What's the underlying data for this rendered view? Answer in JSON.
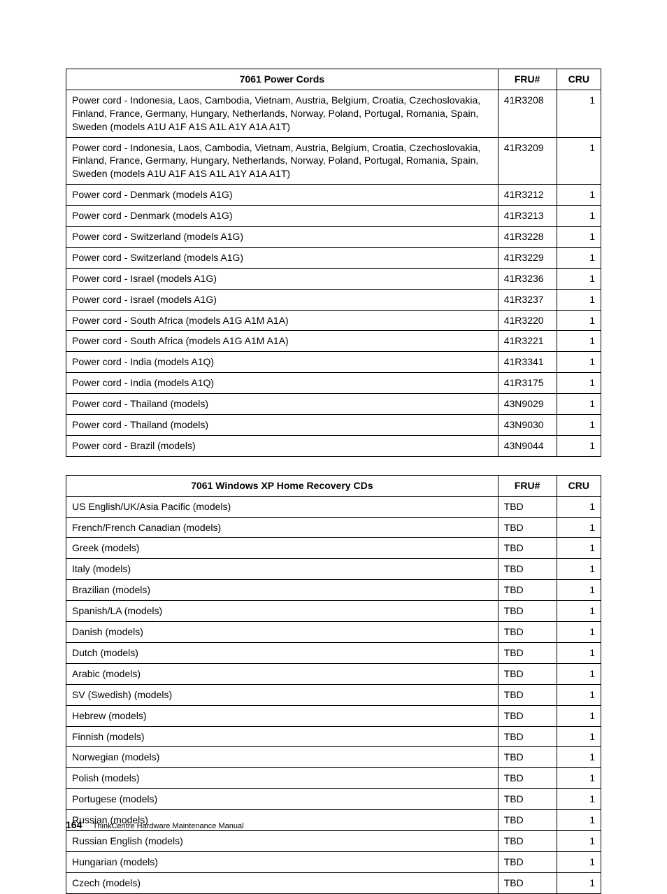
{
  "tables": [
    {
      "headers": [
        "7061 Power Cords",
        "FRU#",
        "CRU"
      ],
      "rows": [
        [
          "Power cord - Indonesia, Laos, Cambodia, Vietnam, Austria, Belgium, Croatia, Czechoslovakia, Finland, France, Germany, Hungary, Netherlands, Norway, Poland, Portugal, Romania, Spain, Sweden (models A1U A1F A1S A1L A1Y A1A A1T)",
          "41R3208",
          "1"
        ],
        [
          "Power cord - Indonesia, Laos, Cambodia, Vietnam, Austria, Belgium, Croatia, Czechoslovakia, Finland, France, Germany, Hungary, Netherlands, Norway, Poland, Portugal, Romania, Spain, Sweden (models A1U A1F A1S A1L A1Y A1A A1T)",
          "41R3209",
          "1"
        ],
        [
          "Power cord - Denmark (models A1G)",
          "41R3212",
          "1"
        ],
        [
          "Power cord - Denmark (models A1G)",
          "41R3213",
          "1"
        ],
        [
          "Power cord - Switzerland (models A1G)",
          "41R3228",
          "1"
        ],
        [
          "Power cord - Switzerland (models A1G)",
          "41R3229",
          "1"
        ],
        [
          "Power cord - Israel (models A1G)",
          "41R3236",
          "1"
        ],
        [
          "Power cord - Israel (models A1G)",
          "41R3237",
          "1"
        ],
        [
          "Power cord - South Africa (models A1G A1M A1A)",
          "41R3220",
          "1"
        ],
        [
          "Power cord - South Africa (models A1G A1M A1A)",
          "41R3221",
          "1"
        ],
        [
          "Power cord - India (models A1Q)",
          "41R3341",
          "1"
        ],
        [
          "Power cord - India (models A1Q)",
          "41R3175",
          "1"
        ],
        [
          "Power cord - Thailand (models)",
          "43N9029",
          "1"
        ],
        [
          "Power cord - Thailand (models)",
          "43N9030",
          "1"
        ],
        [
          "Power cord - Brazil (models)",
          "43N9044",
          "1"
        ]
      ]
    },
    {
      "headers": [
        "7061 Windows XP Home Recovery CDs",
        "FRU#",
        "CRU"
      ],
      "rows": [
        [
          "US English/UK/Asia Pacific (models)",
          "TBD",
          "1"
        ],
        [
          "French/French Canadian (models)",
          "TBD",
          "1"
        ],
        [
          "Greek (models)",
          "TBD",
          "1"
        ],
        [
          "Italy (models)",
          "TBD",
          "1"
        ],
        [
          "Brazilian (models)",
          "TBD",
          "1"
        ],
        [
          "Spanish/LA (models)",
          "TBD",
          "1"
        ],
        [
          "Danish (models)",
          "TBD",
          "1"
        ],
        [
          "Dutch (models)",
          "TBD",
          "1"
        ],
        [
          "Arabic (models)",
          "TBD",
          "1"
        ],
        [
          "SV (Swedish) (models)",
          "TBD",
          "1"
        ],
        [
          "Hebrew (models)",
          "TBD",
          "1"
        ],
        [
          "Finnish (models)",
          "TBD",
          "1"
        ],
        [
          "Norwegian (models)",
          "TBD",
          "1"
        ],
        [
          "Polish (models)",
          "TBD",
          "1"
        ],
        [
          "Portugese (models)",
          "TBD",
          "1"
        ],
        [
          "Russian (models)",
          "TBD",
          "1"
        ],
        [
          "Russian English (models)",
          "TBD",
          "1"
        ],
        [
          "Hungarian (models)",
          "TBD",
          "1"
        ],
        [
          "Czech (models)",
          "TBD",
          "1"
        ]
      ]
    }
  ],
  "footer": {
    "page": "164",
    "title": "ThinkCentre Hardware Maintenance Manual"
  }
}
